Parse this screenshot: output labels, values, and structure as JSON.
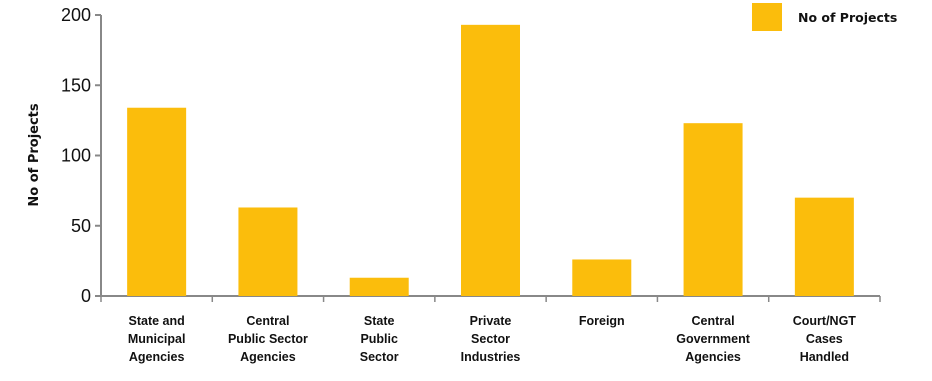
{
  "chart_data": {
    "type": "bar",
    "categories": [
      [
        "State and",
        "Municipal",
        "Agencies"
      ],
      [
        "Central",
        "Public Sector",
        "Agencies"
      ],
      [
        "State",
        "Public",
        "Sector"
      ],
      [
        "Private",
        "Sector",
        "Industries"
      ],
      [
        "Foreign"
      ],
      [
        "Central",
        "Government",
        "Agencies"
      ],
      [
        "Court/NGT",
        "Cases",
        "Handled"
      ]
    ],
    "series": [
      {
        "name": "No of Projects",
        "values": [
          134,
          63,
          13,
          193,
          26,
          123,
          70
        ]
      }
    ],
    "ylabel": "No of Projects",
    "xlabel": "",
    "ylim": [
      0,
      200
    ],
    "yticks": [
      0,
      50,
      100,
      150,
      200
    ],
    "grid": false,
    "legend": "top-right",
    "colors": {
      "bar": "#FBBD0C",
      "axis": "#888888",
      "text": "#111111"
    }
  }
}
